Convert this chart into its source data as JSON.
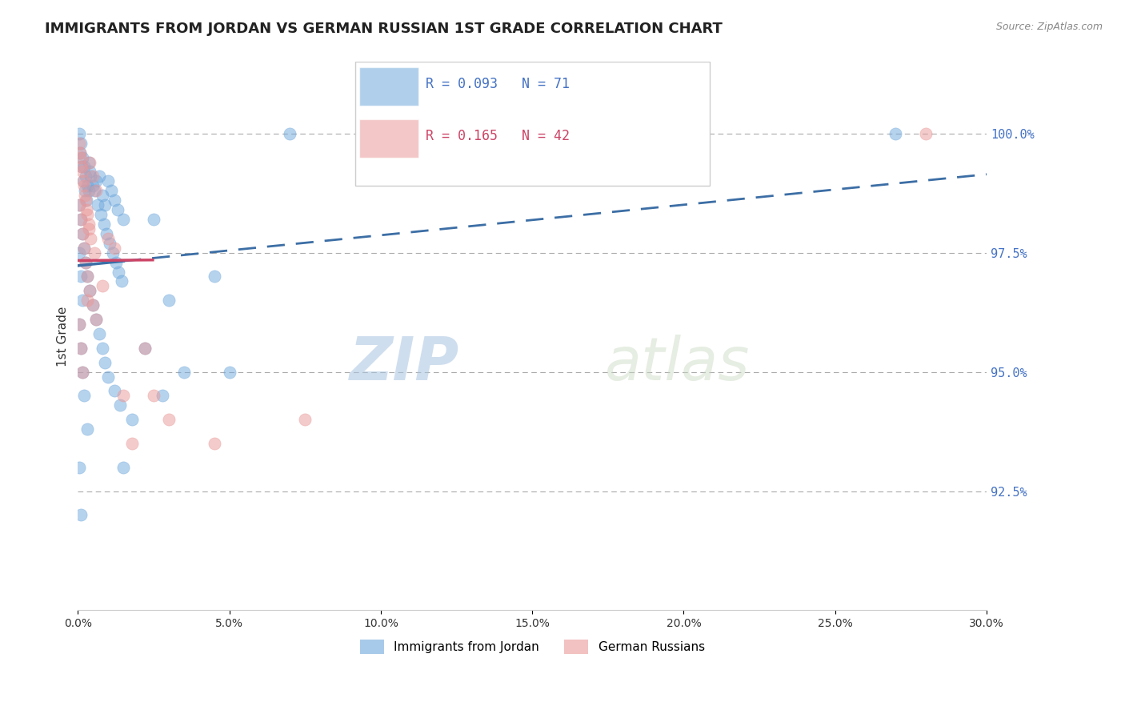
{
  "title": "IMMIGRANTS FROM JORDAN VS GERMAN RUSSIAN 1ST GRADE CORRELATION CHART",
  "source_text": "Source: ZipAtlas.com",
  "xlabel": "",
  "ylabel": "1st Grade",
  "xlim": [
    0.0,
    30.0
  ],
  "ylim": [
    90.0,
    101.5
  ],
  "yticks": [
    92.5,
    95.0,
    97.5,
    100.0
  ],
  "ytick_labels": [
    "92.5%",
    "95.0%",
    "97.5%",
    "100.0%"
  ],
  "xticks": [
    0.0,
    5.0,
    10.0,
    15.0,
    20.0,
    25.0,
    30.0
  ],
  "xtick_labels": [
    "0.0%",
    "5.0%",
    "10.0%",
    "15.0%",
    "20.0%",
    "25.0%",
    "30.0%"
  ],
  "legend1_text": "R = 0.093   N = 71",
  "legend2_text": "R = 0.165   N = 42",
  "legend_label1": "Immigrants from Jordan",
  "legend_label2": "German Russians",
  "blue_color": "#6fa8dc",
  "pink_color": "#ea9999",
  "trend_blue": "#3c6ea5",
  "trend_pink": "#cc4466",
  "watermark_zip": "ZIP",
  "watermark_atlas": "atlas",
  "background_color": "#ffffff",
  "blue_points": [
    [
      0.05,
      100.0
    ],
    [
      0.1,
      99.8
    ],
    [
      0.15,
      99.5
    ],
    [
      0.2,
      99.3
    ],
    [
      0.25,
      99.1
    ],
    [
      0.3,
      98.9
    ],
    [
      0.35,
      98.8
    ],
    [
      0.4,
      99.2
    ],
    [
      0.5,
      98.9
    ],
    [
      0.6,
      99.0
    ],
    [
      0.7,
      99.1
    ],
    [
      0.8,
      98.7
    ],
    [
      0.9,
      98.5
    ],
    [
      1.0,
      99.0
    ],
    [
      1.1,
      98.8
    ],
    [
      1.2,
      98.6
    ],
    [
      1.3,
      98.4
    ],
    [
      1.5,
      98.2
    ],
    [
      0.08,
      99.6
    ],
    [
      0.12,
      99.3
    ],
    [
      0.18,
      99.0
    ],
    [
      0.22,
      98.8
    ],
    [
      0.28,
      98.6
    ],
    [
      0.35,
      99.4
    ],
    [
      0.42,
      99.1
    ],
    [
      0.55,
      98.8
    ],
    [
      0.65,
      98.5
    ],
    [
      0.75,
      98.3
    ],
    [
      0.85,
      98.1
    ],
    [
      0.95,
      97.9
    ],
    [
      1.05,
      97.7
    ],
    [
      1.15,
      97.5
    ],
    [
      1.25,
      97.3
    ],
    [
      1.35,
      97.1
    ],
    [
      1.45,
      96.9
    ],
    [
      0.05,
      98.5
    ],
    [
      0.1,
      98.2
    ],
    [
      0.15,
      97.9
    ],
    [
      0.2,
      97.6
    ],
    [
      0.25,
      97.3
    ],
    [
      0.3,
      97.0
    ],
    [
      0.4,
      96.7
    ],
    [
      0.5,
      96.4
    ],
    [
      0.6,
      96.1
    ],
    [
      0.7,
      95.8
    ],
    [
      0.8,
      95.5
    ],
    [
      0.9,
      95.2
    ],
    [
      1.0,
      94.9
    ],
    [
      1.2,
      94.6
    ],
    [
      1.4,
      94.3
    ],
    [
      0.05,
      97.5
    ],
    [
      0.1,
      97.0
    ],
    [
      0.15,
      96.5
    ],
    [
      2.5,
      98.2
    ],
    [
      3.0,
      96.5
    ],
    [
      0.05,
      96.0
    ],
    [
      0.1,
      95.5
    ],
    [
      0.15,
      95.0
    ],
    [
      0.2,
      94.5
    ],
    [
      0.3,
      93.8
    ],
    [
      4.5,
      97.0
    ],
    [
      1.8,
      94.0
    ],
    [
      2.2,
      95.5
    ],
    [
      2.8,
      94.5
    ],
    [
      3.5,
      95.0
    ],
    [
      0.05,
      93.0
    ],
    [
      5.0,
      95.0
    ],
    [
      0.1,
      92.0
    ],
    [
      1.5,
      93.0
    ],
    [
      7.0,
      100.0
    ],
    [
      27.0,
      100.0
    ]
  ],
  "pink_points": [
    [
      0.05,
      99.8
    ],
    [
      0.1,
      99.5
    ],
    [
      0.15,
      99.2
    ],
    [
      0.2,
      98.9
    ],
    [
      0.25,
      98.6
    ],
    [
      0.3,
      98.3
    ],
    [
      0.35,
      98.0
    ],
    [
      0.4,
      99.4
    ],
    [
      0.5,
      99.1
    ],
    [
      0.6,
      98.8
    ],
    [
      0.08,
      99.6
    ],
    [
      0.12,
      99.3
    ],
    [
      0.18,
      99.0
    ],
    [
      0.22,
      98.7
    ],
    [
      0.28,
      98.4
    ],
    [
      0.35,
      98.1
    ],
    [
      0.42,
      97.8
    ],
    [
      0.55,
      97.5
    ],
    [
      0.05,
      98.5
    ],
    [
      0.1,
      98.2
    ],
    [
      0.15,
      97.9
    ],
    [
      0.2,
      97.6
    ],
    [
      0.25,
      97.3
    ],
    [
      0.3,
      97.0
    ],
    [
      0.4,
      96.7
    ],
    [
      0.5,
      96.4
    ],
    [
      0.6,
      96.1
    ],
    [
      0.05,
      96.0
    ],
    [
      0.1,
      95.5
    ],
    [
      0.15,
      95.0
    ],
    [
      2.5,
      94.5
    ],
    [
      3.0,
      94.0
    ],
    [
      1.8,
      93.5
    ],
    [
      2.2,
      95.5
    ],
    [
      28.0,
      100.0
    ],
    [
      4.5,
      93.5
    ],
    [
      7.5,
      94.0
    ],
    [
      1.0,
      97.8
    ],
    [
      1.2,
      97.6
    ],
    [
      1.5,
      94.5
    ],
    [
      0.3,
      96.5
    ],
    [
      0.8,
      96.8
    ]
  ]
}
